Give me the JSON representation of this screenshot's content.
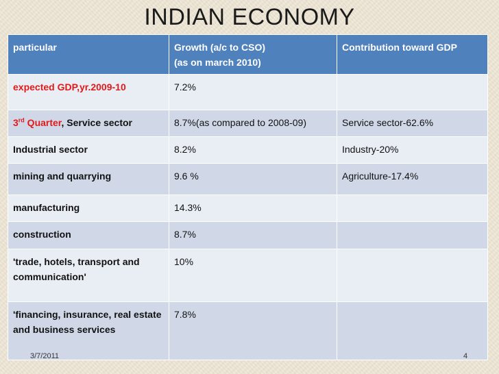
{
  "title": "INDIAN ECONOMY",
  "table": {
    "headers": [
      "particular",
      "Growth (a/c to CSO)",
      "(as on march 2010)",
      "Contribution toward GDP"
    ],
    "rows": [
      {
        "particular": "expected GDP,yr.2009-10",
        "growth": "7.2%",
        "contribution": ""
      },
      {
        "particular_num": "3",
        "particular_sup": "rd",
        "particular_quarter": " Quarter",
        "particular_rest": ", Service sector",
        "growth": "8.7%(as compared to 2008-09)",
        "contribution": "Service sector-62.6%"
      },
      {
        "particular": "Industrial sector",
        "growth": "8.2%",
        "contribution": "Industry-20%"
      },
      {
        "particular": "mining and quarrying",
        "growth": "9.6 %",
        "contribution": "Agriculture-17.4%"
      },
      {
        "particular": "manufacturing",
        "growth": "14.3%",
        "contribution": ""
      },
      {
        "particular": "construction",
        "growth": "8.7%",
        "contribution": ""
      },
      {
        "particular": "'trade, hotels, transport and communication'",
        "growth": "10%",
        "contribution": ""
      },
      {
        "particular": "'financing, insurance, real estate and business services",
        "growth": "7.8%",
        "contribution": ""
      }
    ]
  },
  "footer": {
    "date": "3/7/2011",
    "page": "4"
  }
}
